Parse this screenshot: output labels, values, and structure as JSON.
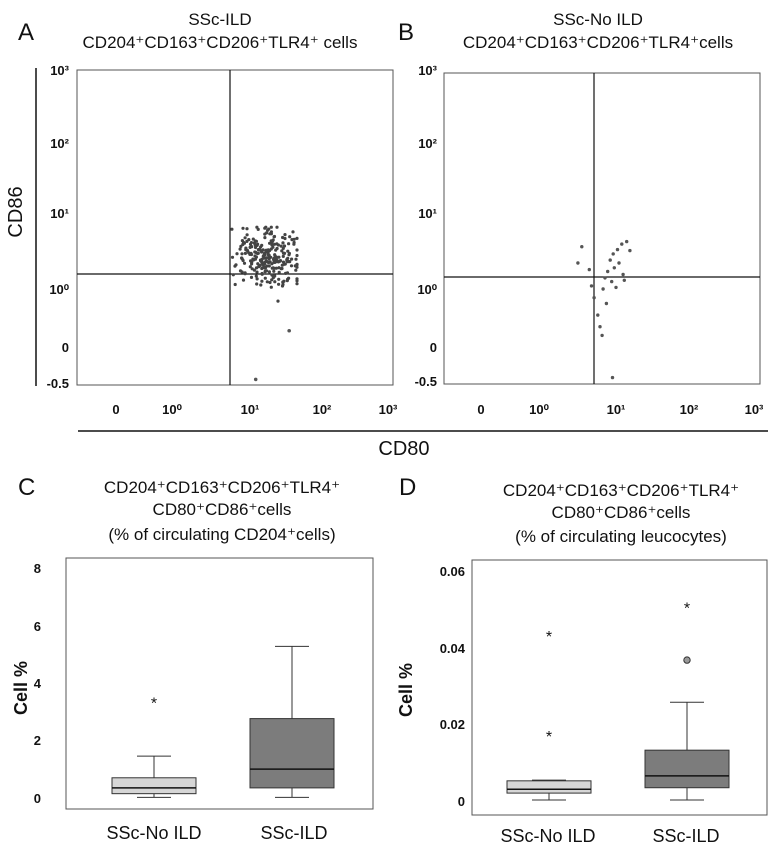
{
  "panels": {
    "A": {
      "letter": "A",
      "title_line1": "SSc-ILD",
      "title_line2": "CD204⁺CD163⁺CD206⁺TLR4⁺ cells",
      "x_ticks": [
        "0",
        "10⁰",
        "10¹",
        "10²",
        "10³"
      ],
      "y_ticks": [
        "10³",
        "10²",
        "10¹",
        "10⁰",
        "0",
        "-0.5"
      ]
    },
    "B": {
      "letter": "B",
      "title_line1": "SSc-No ILD",
      "title_line2": "CD204⁺CD163⁺CD206⁺TLR4⁺cells",
      "x_ticks": [
        "0",
        "10⁰",
        "10¹",
        "10²",
        "10³"
      ],
      "y_ticks": [
        "10³",
        "10²",
        "10¹",
        "10⁰",
        "0",
        "-0.5"
      ]
    },
    "C": {
      "letter": "C",
      "title_line1": "CD204⁺CD163⁺CD206⁺TLR4⁺",
      "title_line2": "CD80⁺CD86⁺cells",
      "title_line3": "(% of circulating CD204⁺cells)",
      "ylabel": "Cell %",
      "y_ticks": [
        "8",
        "6",
        "4",
        "2",
        "0"
      ],
      "categories": [
        "SSc-No ILD",
        "SSc-ILD"
      ]
    },
    "D": {
      "letter": "D",
      "title_line1": "CD204⁺CD163⁺CD206⁺TLR4⁺",
      "title_line2": "CD80⁺CD86⁺cells",
      "title_line3": "(% of circulating leucocytes)",
      "ylabel": "Cell %",
      "y_ticks": [
        "0.06",
        "0.04",
        "0.02",
        "0"
      ],
      "categories": [
        "SSc-No ILD",
        "SSc-ILD"
      ]
    }
  },
  "shared_axes": {
    "ylabel_AB": "CD86",
    "xlabel_AB": "CD80"
  },
  "chart_data": [
    {
      "type": "scatter",
      "panel": "A",
      "title": "SSc-ILD CD204⁺CD163⁺CD206⁺TLR4⁺ cells",
      "xlabel": "CD80",
      "ylabel": "CD86",
      "scale": "log",
      "x_ticks": [
        "0",
        "10⁰",
        "10¹",
        "10²",
        "10³"
      ],
      "y_ticks": [
        "-0.5",
        "0",
        "10⁰",
        "10¹",
        "10²",
        "10³"
      ],
      "quadrant_gate": {
        "x": 5.5,
        "y": 1.5
      },
      "cluster": {
        "x_center": 17,
        "y_center": 2.7,
        "x_min": 4,
        "x_max": 45,
        "y_min": 0.6,
        "y_max": 6.5,
        "n_points": 260
      },
      "outliers": [
        {
          "x": 35,
          "y": 0.28
        },
        {
          "x": 12,
          "y": -0.45
        }
      ]
    },
    {
      "type": "scatter",
      "panel": "B",
      "title": "SSc-No ILD CD204⁺CD163⁺CD206⁺TLR4⁺cells",
      "xlabel": "CD80",
      "ylabel": "CD86",
      "scale": "log",
      "x_ticks": [
        "0",
        "10⁰",
        "10¹",
        "10²",
        "10³"
      ],
      "y_ticks": [
        "-0.5",
        "0",
        "10⁰",
        "10¹",
        "10²",
        "10³"
      ],
      "quadrant_gate": {
        "x": 5.5,
        "y": 1.5
      },
      "points": [
        {
          "x": 3.6,
          "y": 3.6
        },
        {
          "x": 3.2,
          "y": 2.2
        },
        {
          "x": 4.5,
          "y": 1.8
        },
        {
          "x": 4.8,
          "y": 1.1
        },
        {
          "x": 5.2,
          "y": 0.85
        },
        {
          "x": 5.8,
          "y": 0.55
        },
        {
          "x": 6.2,
          "y": 0.35
        },
        {
          "x": 6.6,
          "y": 0.2
        },
        {
          "x": 7.2,
          "y": 1.4
        },
        {
          "x": 7.8,
          "y": 1.7
        },
        {
          "x": 8.4,
          "y": 2.4
        },
        {
          "x": 9.2,
          "y": 2.9
        },
        {
          "x": 10.5,
          "y": 3.3
        },
        {
          "x": 12.0,
          "y": 3.9
        },
        {
          "x": 14.0,
          "y": 4.2
        },
        {
          "x": 15.5,
          "y": 3.2
        },
        {
          "x": 8.8,
          "y": 1.25
        },
        {
          "x": 10.0,
          "y": 1.05
        },
        {
          "x": 12.5,
          "y": 1.55
        },
        {
          "x": 6.8,
          "y": 1.0
        },
        {
          "x": 7.5,
          "y": 0.75
        },
        {
          "x": 9.5,
          "y": 1.9
        },
        {
          "x": 11.0,
          "y": 2.2
        },
        {
          "x": 13.0,
          "y": 1.3
        },
        {
          "x": 9.0,
          "y": -0.45
        }
      ]
    },
    {
      "type": "box",
      "panel": "C",
      "title": "CD204⁺CD163⁺CD206⁺TLR4⁺ CD80⁺CD86⁺cells (% of circulating CD204⁺cells)",
      "ylabel": "Cell %",
      "ylim": [
        0,
        8
      ],
      "y_ticks": [
        0,
        2,
        4,
        6,
        8
      ],
      "categories": [
        "SSc-No ILD",
        "SSc-ILD"
      ],
      "series": [
        {
          "category": "SSc-No ILD",
          "color": "#d6d6d6",
          "min": 0.02,
          "q1": 0.15,
          "median": 0.35,
          "q3": 0.7,
          "max": 1.45,
          "outliers": [
            {
              "value": 3.35,
              "marker": "*"
            }
          ]
        },
        {
          "category": "SSc-ILD",
          "color": "#7c7c7c",
          "min": 0.02,
          "q1": 0.35,
          "median": 1.0,
          "q3": 2.75,
          "max": 5.25,
          "outliers": []
        }
      ]
    },
    {
      "type": "box",
      "panel": "D",
      "title": "CD204⁺CD163⁺CD206⁺TLR4⁺ CD80⁺CD86⁺cells (% of circulating leucocytes)",
      "ylabel": "Cell %",
      "ylim": [
        0,
        0.06
      ],
      "y_ticks": [
        0,
        0.02,
        0.04,
        0.06
      ],
      "categories": [
        "SSc-No ILD",
        "SSc-ILD"
      ],
      "series": [
        {
          "category": "SSc-No ILD",
          "color": "#d6d6d6",
          "min": 0.0,
          "q1": 0.0018,
          "median": 0.0028,
          "q3": 0.005,
          "max": 0.0052,
          "outliers": [
            {
              "value": 0.017,
              "marker": "*"
            },
            {
              "value": 0.043,
              "marker": "*"
            }
          ]
        },
        {
          "category": "SSc-ILD",
          "color": "#7c7c7c",
          "min": 0.0,
          "q1": 0.0032,
          "median": 0.0063,
          "q3": 0.013,
          "max": 0.0255,
          "outliers": [
            {
              "value": 0.0365,
              "marker": "o"
            },
            {
              "value": 0.0505,
              "marker": "*"
            }
          ]
        }
      ]
    }
  ]
}
